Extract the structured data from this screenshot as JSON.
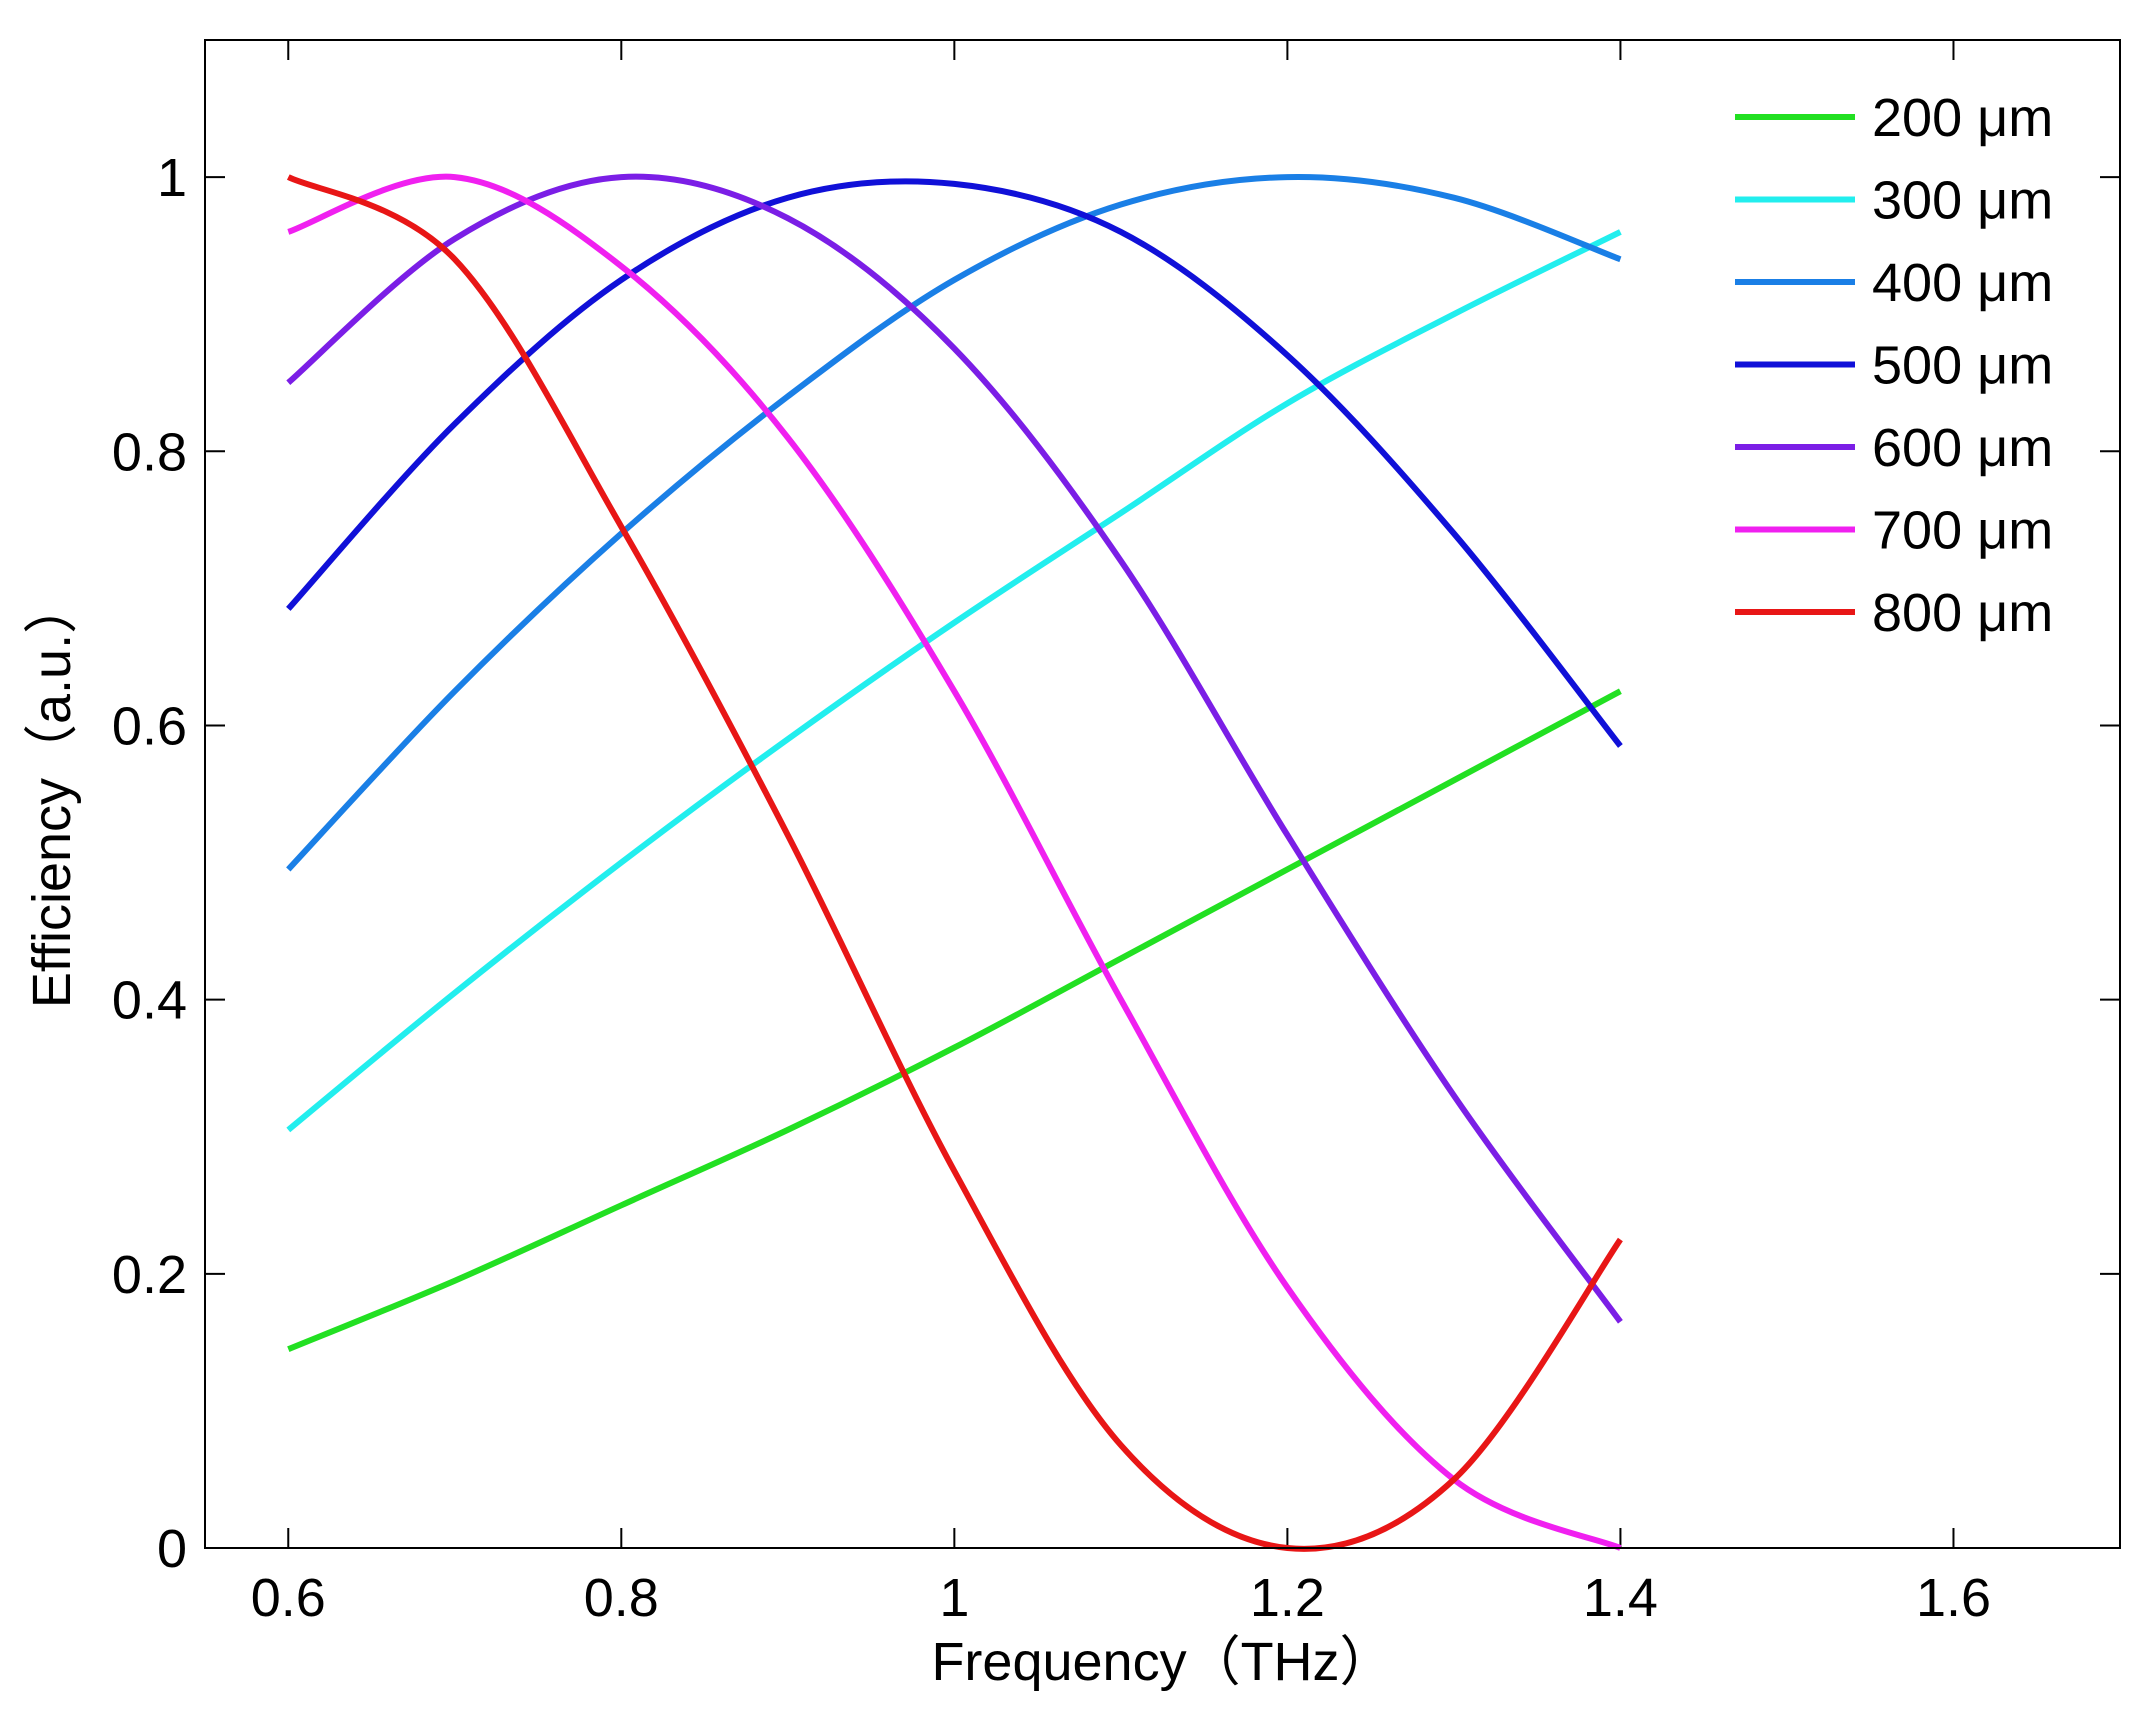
{
  "chart_data": {
    "type": "line",
    "title": "",
    "xlabel": "Frequency（THz）",
    "ylabel": "Efficiency（a.u.）",
    "xlim": [
      0.55,
      1.7
    ],
    "ylim": [
      0,
      1.1
    ],
    "xticks": [
      0.6,
      0.8,
      1,
      1.2,
      1.4,
      1.6
    ],
    "yticks": [
      0,
      0.2,
      0.4,
      0.6,
      0.8,
      1
    ],
    "xtick_labels": [
      "0.6",
      "0.8",
      "1",
      "1.2",
      "1.4",
      "1.6"
    ],
    "ytick_labels": [
      "0",
      "0.2",
      "0.4",
      "0.6",
      "0.8",
      "1"
    ],
    "grid": false,
    "legend_position": "top-right",
    "x": [
      0.6,
      0.7,
      0.8,
      0.9,
      1.0,
      1.1,
      1.2,
      1.3,
      1.4
    ],
    "series": [
      {
        "name": "200 μm",
        "color": "#22e022",
        "values": [
          0.145,
          0.195,
          0.25,
          0.305,
          0.365,
          0.43,
          0.495,
          0.56,
          0.625
        ]
      },
      {
        "name": "300 μm",
        "color": "#22eeee",
        "values": [
          0.305,
          0.405,
          0.5,
          0.59,
          0.675,
          0.755,
          0.835,
          0.9,
          0.96
        ]
      },
      {
        "name": "400 μm",
        "color": "#1a7fe6",
        "values": [
          0.495,
          0.625,
          0.74,
          0.84,
          0.925,
          0.98,
          1.0,
          0.985,
          0.94
        ]
      },
      {
        "name": "500 μm",
        "color": "#1010d8",
        "values": [
          0.685,
          0.82,
          0.925,
          0.985,
          0.995,
          0.96,
          0.87,
          0.74,
          0.585
        ]
      },
      {
        "name": "600 μm",
        "color": "#7b1ee6",
        "values": [
          0.85,
          0.955,
          1.0,
          0.97,
          0.875,
          0.72,
          0.52,
          0.33,
          0.165
        ]
      },
      {
        "name": "700 μm",
        "color": "#f020f0",
        "values": [
          0.96,
          1.0,
          0.935,
          0.81,
          0.625,
          0.4,
          0.19,
          0.05,
          0.0
        ]
      },
      {
        "name": "800 μm",
        "color": "#e81616",
        "values": [
          1.0,
          0.94,
          0.745,
          0.52,
          0.275,
          0.075,
          0.0,
          0.05,
          0.225
        ]
      }
    ]
  }
}
